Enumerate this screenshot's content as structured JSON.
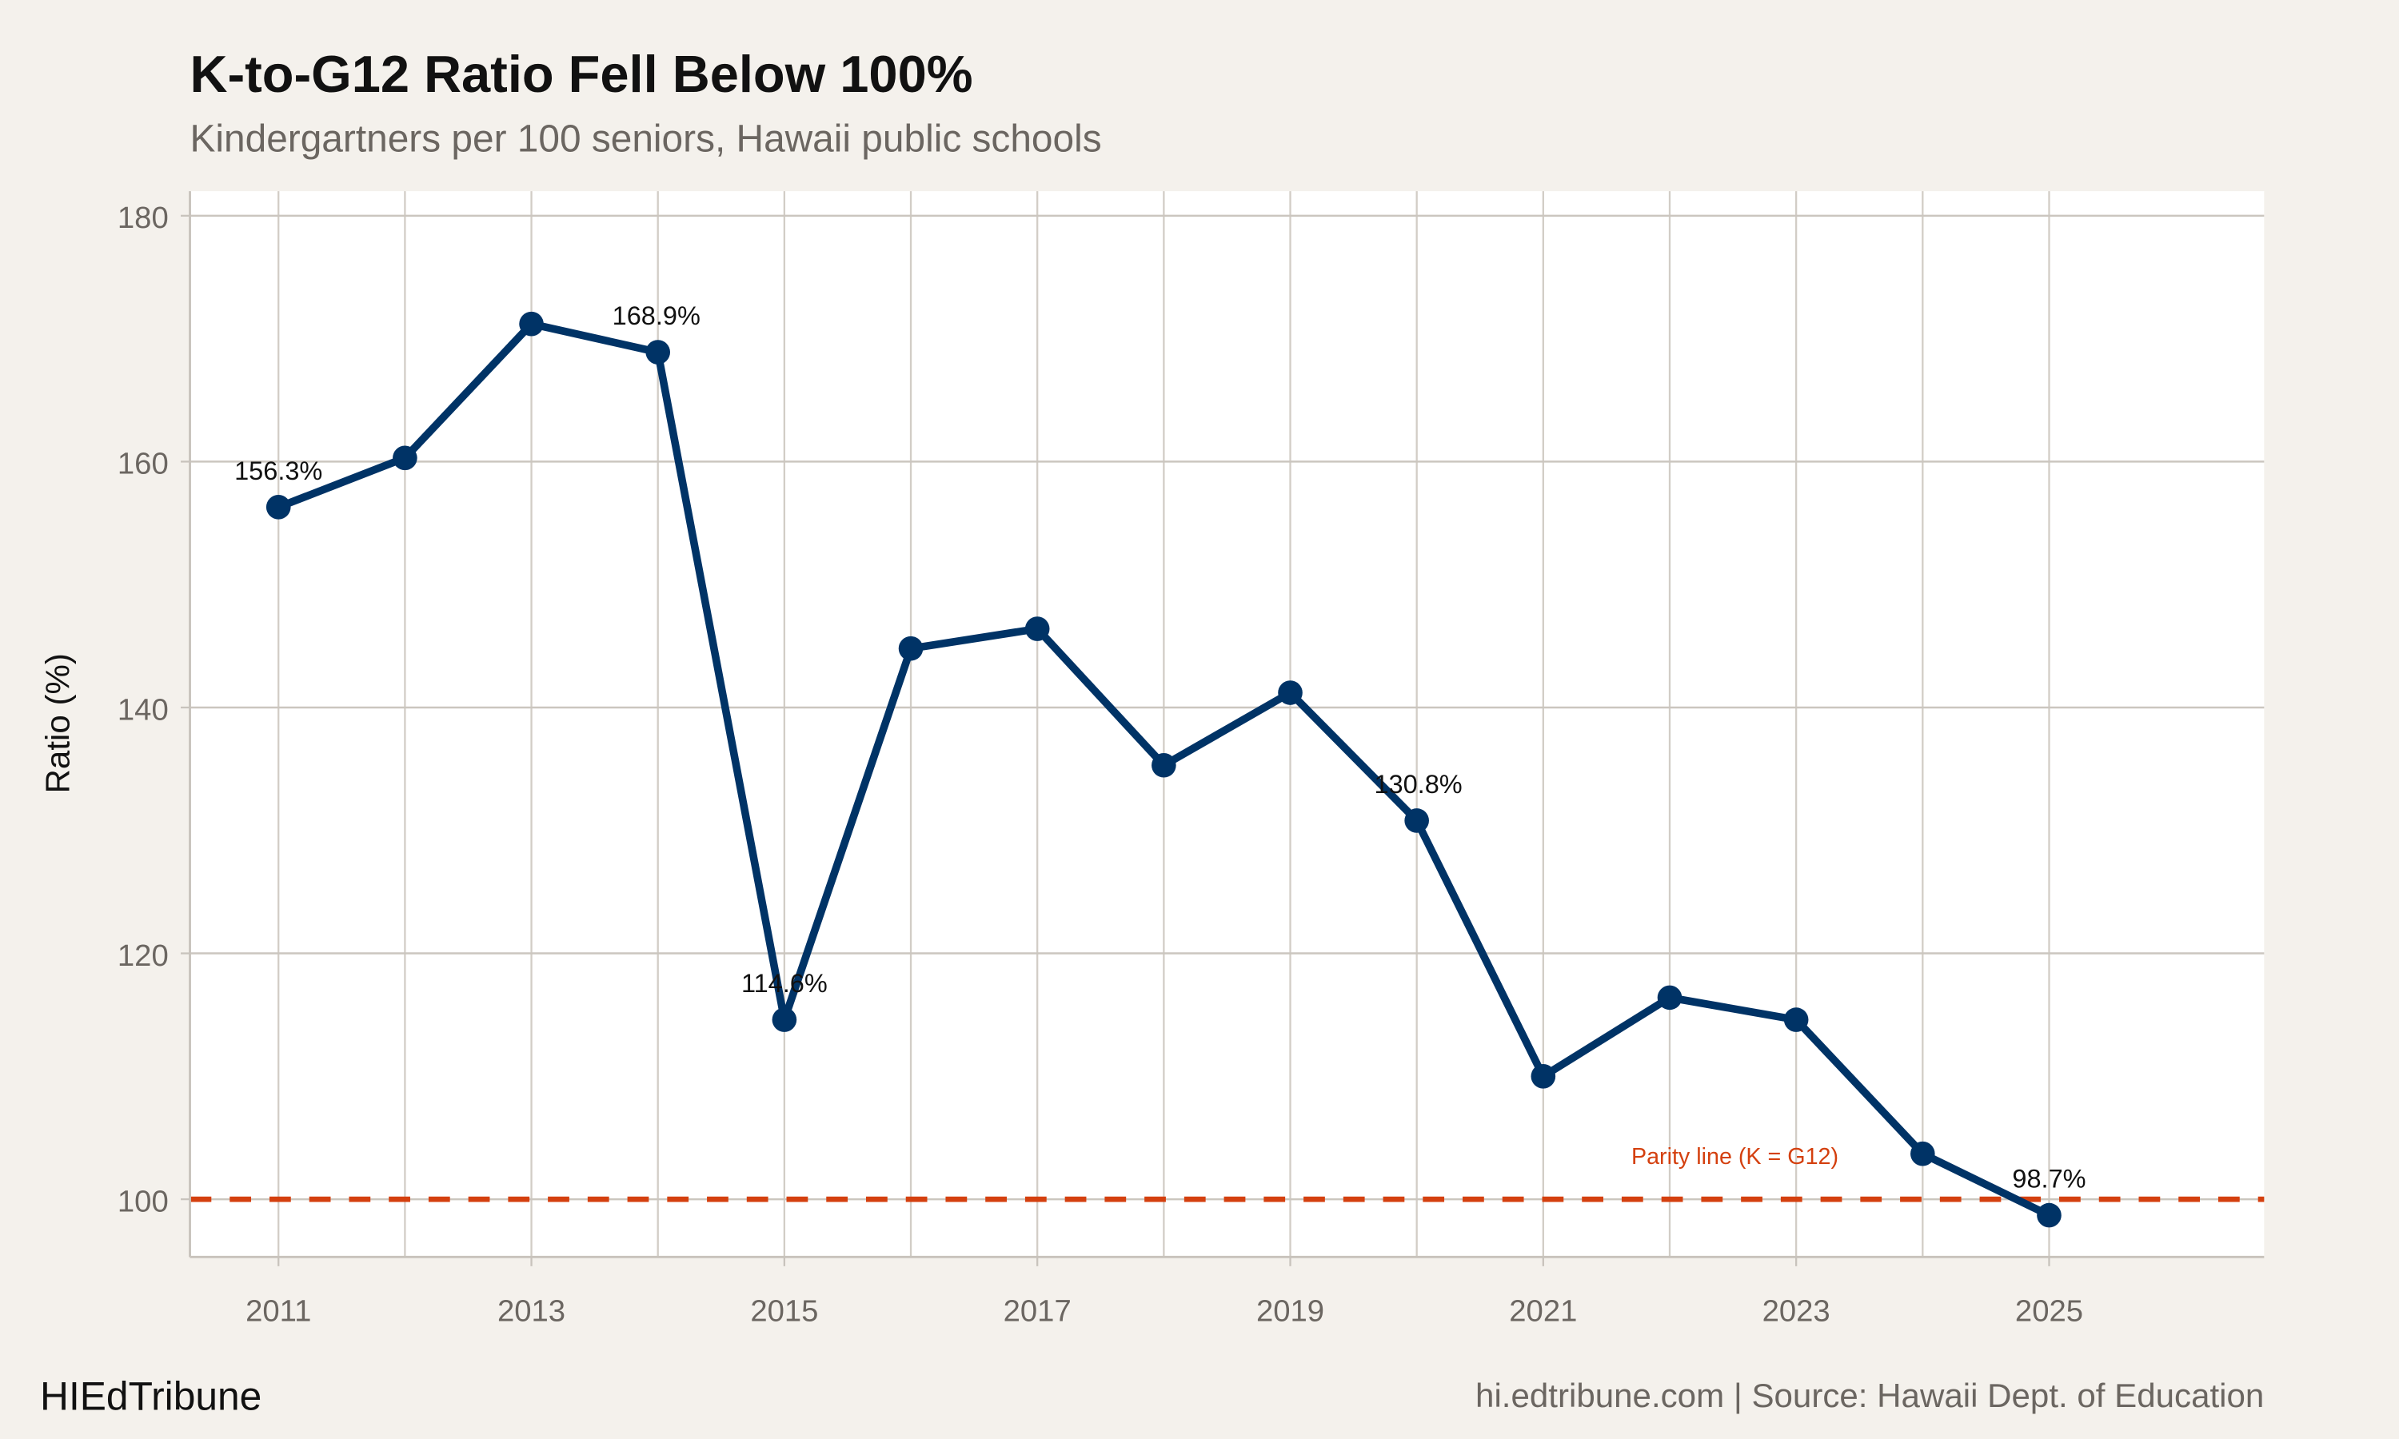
{
  "chart_data": {
    "type": "line",
    "title": "K-to-G12 Ratio Fell Below 100%",
    "subtitle": "Kindergartners per 100 seniors, Hawaii public schools",
    "xlabel": "",
    "ylabel": "Ratio (%)",
    "xlim": [
      2010.3,
      2026.7
    ],
    "ylim": [
      95.3,
      182
    ],
    "x_ticks": [
      2011,
      2013,
      2015,
      2017,
      2019,
      2021,
      2023,
      2025
    ],
    "y_ticks": [
      100,
      120,
      140,
      160,
      180
    ],
    "grid": true,
    "x": [
      2011,
      2012,
      2013,
      2014,
      2015,
      2016,
      2017,
      2018,
      2019,
      2020,
      2021,
      2022,
      2023,
      2024,
      2025
    ],
    "values": [
      156.3,
      160.3,
      171.2,
      168.9,
      114.6,
      144.8,
      146.4,
      135.3,
      141.2,
      130.8,
      110.0,
      116.4,
      114.6,
      103.7,
      98.7
    ],
    "data_labels": [
      {
        "x": 2011,
        "text": "156.3%"
      },
      {
        "x": 2014,
        "text": "168.9%"
      },
      {
        "x": 2015,
        "text": "114.6%"
      },
      {
        "x": 2020,
        "text": "130.8%"
      },
      {
        "x": 2025,
        "text": "98.7%"
      }
    ],
    "reference_line": {
      "y": 100,
      "label": "Parity line (K = G12)",
      "color": "#d4400f",
      "style": "dashed"
    },
    "line_color": "#003366"
  },
  "footer": {
    "brand": "HIEdTribune",
    "source": "hi.edtribune.com | Source: Hawaii Dept. of Education"
  }
}
